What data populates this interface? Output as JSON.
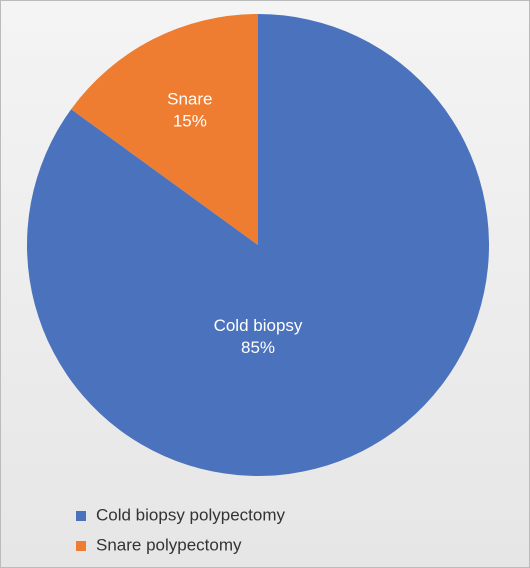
{
  "chart_data": {
    "type": "pie",
    "series": [
      {
        "name": "Cold biopsy polypectomy",
        "color": "#4a72bd",
        "values": [
          85
        ],
        "value_labels": [
          "85%"
        ],
        "slice_label": "Cold biopsy"
      },
      {
        "name": "Snare polypectomy",
        "color": "#ee7d31",
        "values": [
          15
        ],
        "value_labels": [
          "15%"
        ],
        "slice_label": "Snare"
      }
    ],
    "legend": "bottom-left"
  }
}
